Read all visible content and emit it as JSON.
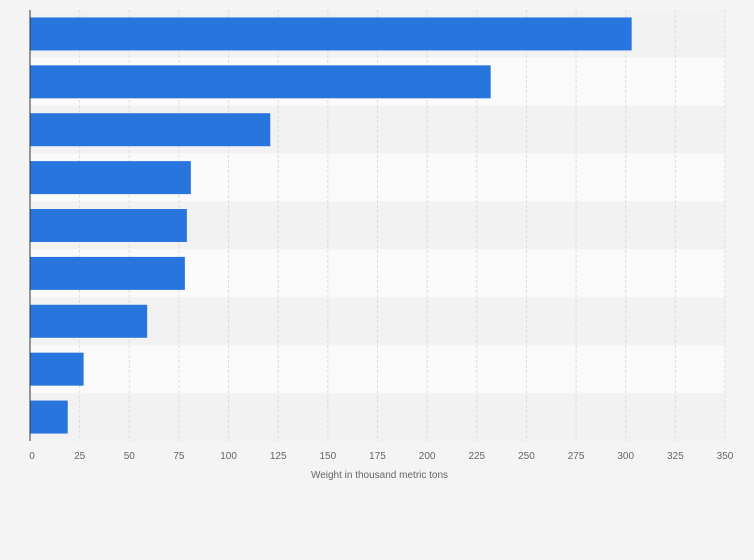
{
  "chart_data": {
    "type": "bar",
    "orientation": "horizontal",
    "categories": [
      "",
      "",
      "",
      "",
      "",
      "",
      "",
      "",
      ""
    ],
    "values": [
      303,
      232,
      121,
      81,
      79,
      78,
      59,
      27,
      19
    ],
    "xlabel": "Weight in thousand metric tons",
    "ylabel": "",
    "xlim": [
      0,
      350
    ],
    "x_ticks": [
      0,
      25,
      50,
      75,
      100,
      125,
      150,
      175,
      200,
      225,
      250,
      275,
      300,
      325,
      350
    ],
    "grid": true,
    "legend": "none"
  },
  "colors": {
    "bar": "#2876dd",
    "background": "#f4f4f4",
    "band_light": "#fafafa",
    "band_dark": "#f2f2f2",
    "gridline": "#dddddd",
    "axis_line": "#333333",
    "text": "#666666"
  }
}
